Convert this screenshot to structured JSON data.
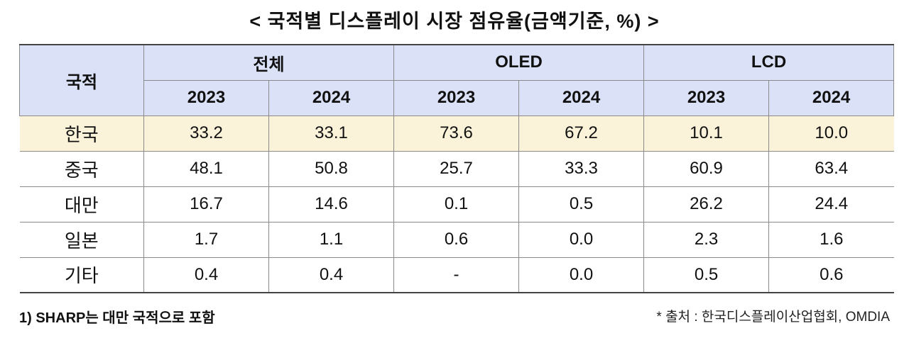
{
  "title": "< 국적별 디스플레이 시장 점유율(금액기준, %) >",
  "table": {
    "corner_header": "국적",
    "groups": [
      "전체",
      "OLED",
      "LCD"
    ],
    "years": [
      "2023",
      "2024",
      "2023",
      "2024",
      "2023",
      "2024"
    ],
    "rows": [
      {
        "country": "한국",
        "values": [
          "33.2",
          "33.1",
          "73.6",
          "67.2",
          "10.1",
          "10.0"
        ]
      },
      {
        "country": "중국",
        "values": [
          "48.1",
          "50.8",
          "25.7",
          "33.3",
          "60.9",
          "63.4"
        ]
      },
      {
        "country": "대만",
        "values": [
          "16.7",
          "14.6",
          "0.1",
          "0.5",
          "26.2",
          "24.4"
        ]
      },
      {
        "country": "일본",
        "values": [
          "1.7",
          "1.1",
          "0.6",
          "0.0",
          "2.3",
          "1.6"
        ]
      },
      {
        "country": "기타",
        "values": [
          "0.4",
          "0.4",
          "-",
          "0.0",
          "0.5",
          "0.6"
        ]
      }
    ]
  },
  "footnote": "1) SHARP는 대만 국적으로 포함",
  "source": "* 출처 : 한국디스플레이산업협회, OMDIA",
  "colors": {
    "header_bg": "#dbe2f7",
    "highlight_row_bg": "#fbf3d9"
  }
}
